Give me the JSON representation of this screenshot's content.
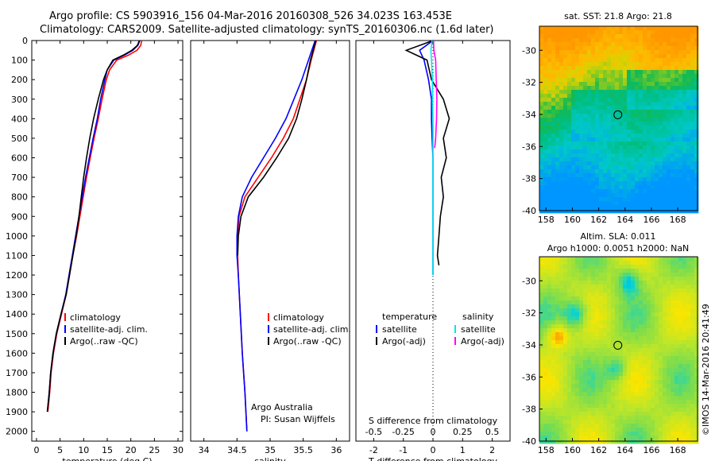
{
  "header": {
    "line1": "Argo profile: CS 5903916_156 04-Mar-2016 20160308_526 34.023S 163.453E",
    "line2": "Climatology: CARS2009. Satellite-adjusted climatology: synTS_20160306.nc (1.6d later)"
  },
  "side_stamp": "©IMOS 14-Mar-2016 20:41:49",
  "credit": {
    "line1": "Argo Australia",
    "line2": "PI: Susan Wijffels"
  },
  "colors": {
    "climatology": "#ff0000",
    "satellite": "#0000ff",
    "argo": "#000000",
    "sal_sat": "#00e5ee",
    "sal_argo": "#ff00ff"
  },
  "chart_data": [
    {
      "type": "line",
      "xlabel": "temperature (deg C)",
      "xlim": [
        -1,
        31
      ],
      "ylim": [
        2050,
        0
      ],
      "xticks": [
        0,
        5,
        10,
        15,
        20,
        25,
        30
      ],
      "yticks": [
        0,
        100,
        200,
        300,
        400,
        500,
        600,
        700,
        800,
        900,
        1000,
        1100,
        1200,
        1300,
        1400,
        1500,
        1600,
        1700,
        1800,
        1900,
        2000
      ],
      "legend": [
        "climatology",
        "satellite-adj. clim.",
        "Argo(..raw -QC)"
      ],
      "series": [
        {
          "name": "climatology",
          "color": "#ff0000",
          "x": [
            22.3,
            22.1,
            21.3,
            19.5,
            17.0,
            15.5,
            14.8,
            13.9,
            13.1,
            12.2,
            11.4,
            10.6,
            9.9,
            9.2,
            8.5,
            7.7,
            7.0,
            6.3,
            5.3,
            4.3,
            3.6,
            3.1,
            2.8,
            2.4
          ],
          "y": [
            0,
            25,
            50,
            75,
            100,
            150,
            200,
            300,
            400,
            500,
            600,
            700,
            800,
            900,
            1000,
            1100,
            1200,
            1300,
            1400,
            1500,
            1600,
            1700,
            1800,
            1900
          ]
        },
        {
          "name": "satellite-adj. clim.",
          "color": "#0000ff",
          "x": [
            21.9,
            21.5,
            20.4,
            18.6,
            16.4,
            15.0,
            14.5,
            13.6,
            12.9,
            12.0,
            11.2,
            10.4,
            9.7,
            9.0,
            8.3,
            7.6,
            6.9,
            6.2,
            5.2,
            4.2,
            3.5,
            3.0,
            2.7,
            2.3
          ],
          "y": [
            0,
            25,
            50,
            75,
            100,
            150,
            200,
            300,
            400,
            500,
            600,
            700,
            800,
            900,
            1000,
            1100,
            1200,
            1300,
            1400,
            1500,
            1600,
            1700,
            1800,
            1900
          ]
        },
        {
          "name": "Argo(..raw -QC)",
          "color": "#000000",
          "x": [
            21.8,
            21.4,
            20.2,
            18.4,
            16.2,
            15.0,
            14.2,
            13.1,
            12.1,
            11.3,
            10.6,
            10.0,
            9.5,
            9.0,
            8.4,
            7.7,
            7.0,
            6.3,
            5.2,
            4.2,
            3.5,
            3.0,
            2.7,
            2.3
          ],
          "y": [
            0,
            25,
            50,
            75,
            100,
            150,
            200,
            300,
            400,
            500,
            600,
            700,
            800,
            900,
            1000,
            1100,
            1200,
            1300,
            1400,
            1500,
            1600,
            1700,
            1800,
            1900
          ]
        }
      ]
    },
    {
      "type": "line",
      "xlabel": "salinity",
      "xlim": [
        33.8,
        36.2
      ],
      "ylim": [
        2050,
        0
      ],
      "xticks": [
        34,
        34.5,
        35,
        35.5,
        36
      ],
      "legend": [
        "climatology",
        "satellite-adj. clim.",
        "Argo(..raw -QC)"
      ],
      "series": [
        {
          "name": "climatology",
          "color": "#ff0000",
          "x": [
            35.7,
            35.66,
            35.62,
            35.55,
            35.45,
            35.35,
            35.2,
            35.02,
            34.82,
            34.62,
            34.53,
            34.51,
            34.51,
            34.52,
            34.55,
            34.58,
            34.62,
            34.65
          ],
          "y": [
            0,
            50,
            100,
            200,
            300,
            400,
            500,
            600,
            700,
            800,
            900,
            1000,
            1100,
            1200,
            1400,
            1600,
            1800,
            2000
          ]
        },
        {
          "name": "satellite-adj. clim.",
          "color": "#0000ff",
          "x": [
            35.68,
            35.63,
            35.58,
            35.48,
            35.36,
            35.24,
            35.08,
            34.9,
            34.72,
            34.58,
            34.52,
            34.5,
            34.5,
            34.52,
            34.55,
            34.58,
            34.62,
            34.65
          ],
          "y": [
            0,
            50,
            100,
            200,
            300,
            400,
            500,
            600,
            700,
            800,
            900,
            1000,
            1100,
            1200,
            1400,
            1600,
            1800,
            2000
          ]
        },
        {
          "name": "Argo(..raw -QC)",
          "color": "#000000",
          "x": [
            35.69,
            35.65,
            35.61,
            35.55,
            35.48,
            35.4,
            35.28,
            35.1,
            34.9,
            34.67,
            34.56,
            34.52,
            34.51
          ],
          "y": [
            0,
            50,
            100,
            200,
            300,
            400,
            500,
            600,
            700,
            800,
            900,
            1000,
            1100
          ]
        }
      ]
    },
    {
      "type": "line",
      "xlabel": "T difference from climatology",
      "xlabel_top": "S difference from climatology",
      "xlim": [
        -2.6,
        2.6
      ],
      "ylim": [
        2050,
        0
      ],
      "xticks": [
        -2,
        -1,
        0,
        1,
        2
      ],
      "xticks_s": [
        -0.5,
        -0.25,
        0,
        0.25,
        0.5
      ],
      "legend_title_t": "temperature",
      "legend_title_s": "salinity",
      "legend": [
        "satellite",
        "Argo(-adj)",
        "satellite",
        "Argo(-adj)"
      ],
      "series": [
        {
          "name": "satellite",
          "color": "#0000ff",
          "x": [
            0.0,
            -0.45,
            -0.3,
            -0.15,
            -0.05,
            -0.05,
            -0.03,
            0.0,
            0.0,
            0.0,
            0.0,
            0.0,
            0.0,
            0.0
          ],
          "y": [
            0,
            50,
            100,
            200,
            300,
            400,
            500,
            600,
            700,
            800,
            900,
            1000,
            1100,
            1200
          ]
        },
        {
          "name": "Argo(-adj)",
          "color": "#000000",
          "x": [
            0.0,
            -0.9,
            -0.2,
            -0.05,
            0.35,
            0.55,
            0.35,
            0.45,
            0.28,
            0.35,
            0.25,
            0.2,
            0.15,
            0.2
          ],
          "y": [
            0,
            50,
            100,
            200,
            300,
            400,
            500,
            600,
            700,
            800,
            900,
            1000,
            1100,
            1150
          ]
        },
        {
          "name": "satellite",
          "color": "#00e5ee",
          "x": [
            -0.03,
            -0.07,
            -0.05,
            -0.02,
            -0.02,
            0.0,
            0.0,
            0.0,
            0.0,
            0.0,
            0.0,
            0.0
          ],
          "y": [
            0,
            50,
            100,
            200,
            300,
            400,
            500,
            700,
            800,
            1000,
            1100,
            1200
          ]
        },
        {
          "name": "Argo(-adj)",
          "color": "#ff00ff",
          "x": [
            0.02,
            0.03,
            0.09,
            0.11,
            0.13,
            0.12,
            0.09,
            0.06
          ],
          "y": [
            0,
            50,
            100,
            200,
            300,
            400,
            500,
            550
          ]
        }
      ]
    },
    {
      "type": "heatmap",
      "title": "sat. SST: 21.8 Argo: 21.8",
      "xlim": [
        157.5,
        169.5
      ],
      "ylim": [
        -40,
        -28.5
      ],
      "xticks": [
        158,
        160,
        162,
        164,
        166,
        168
      ],
      "yticks": [
        -30,
        -32,
        -34,
        -36,
        -38,
        -40
      ],
      "marker": {
        "lon": 163.453,
        "lat": -34.023
      }
    },
    {
      "type": "heatmap",
      "title": "Altim. SLA: 0.011",
      "subtitle": "Argo h1000: 0.0051 h2000: NaN",
      "xlim": [
        157.5,
        169.5
      ],
      "ylim": [
        -40,
        -28.5
      ],
      "xticks": [
        158,
        160,
        162,
        164,
        166,
        168
      ],
      "yticks": [
        -30,
        -32,
        -34,
        -36,
        -38,
        -40
      ],
      "marker": {
        "lon": 163.453,
        "lat": -34.023
      }
    }
  ]
}
